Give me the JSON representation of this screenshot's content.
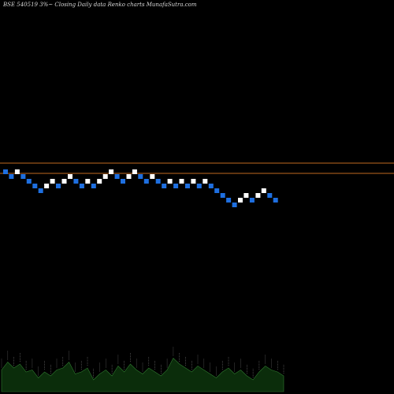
{
  "chart_data": {
    "type": "renko",
    "title": "BSE 540519 3%~  Closing Daily data  Renko  charts MunafaSutra.com",
    "colors": {
      "background": "#000000",
      "up_brick": "#ffffff",
      "down_brick": "#1e6fe0",
      "reference_line": "#c06a1f",
      "volume_fill": "#0b2d0b",
      "volume_stroke": "#2f7a2f"
    },
    "reference_levels": [
      1,
      2
    ],
    "bricks": [
      {
        "level": 1,
        "dir": "down"
      },
      {
        "level": 0,
        "dir": "down"
      },
      {
        "level": 1,
        "dir": "up"
      },
      {
        "level": 0,
        "dir": "down"
      },
      {
        "level": -1,
        "dir": "down"
      },
      {
        "level": -2,
        "dir": "down"
      },
      {
        "level": -3,
        "dir": "down"
      },
      {
        "level": -2,
        "dir": "up"
      },
      {
        "level": -1,
        "dir": "up"
      },
      {
        "level": -2,
        "dir": "down"
      },
      {
        "level": -1,
        "dir": "up"
      },
      {
        "level": 0,
        "dir": "up"
      },
      {
        "level": -1,
        "dir": "down"
      },
      {
        "level": -2,
        "dir": "down"
      },
      {
        "level": -1,
        "dir": "up"
      },
      {
        "level": -2,
        "dir": "down"
      },
      {
        "level": -1,
        "dir": "up"
      },
      {
        "level": 0,
        "dir": "up"
      },
      {
        "level": 1,
        "dir": "up"
      },
      {
        "level": 0,
        "dir": "down"
      },
      {
        "level": -1,
        "dir": "down"
      },
      {
        "level": 0,
        "dir": "up"
      },
      {
        "level": 1,
        "dir": "up"
      },
      {
        "level": 0,
        "dir": "down"
      },
      {
        "level": -1,
        "dir": "down"
      },
      {
        "level": 0,
        "dir": "up"
      },
      {
        "level": -1,
        "dir": "down"
      },
      {
        "level": -2,
        "dir": "down"
      },
      {
        "level": -1,
        "dir": "up"
      },
      {
        "level": -2,
        "dir": "down"
      },
      {
        "level": -1,
        "dir": "up"
      },
      {
        "level": -2,
        "dir": "down"
      },
      {
        "level": -1,
        "dir": "up"
      },
      {
        "level": -2,
        "dir": "down"
      },
      {
        "level": -1,
        "dir": "up"
      },
      {
        "level": -2,
        "dir": "down"
      },
      {
        "level": -3,
        "dir": "down"
      },
      {
        "level": -4,
        "dir": "down"
      },
      {
        "level": -5,
        "dir": "down"
      },
      {
        "level": -6,
        "dir": "down"
      },
      {
        "level": -5,
        "dir": "up"
      },
      {
        "level": -4,
        "dir": "up"
      },
      {
        "level": -5,
        "dir": "down"
      },
      {
        "level": -4,
        "dir": "up"
      },
      {
        "level": -3,
        "dir": "up"
      },
      {
        "level": -4,
        "dir": "down"
      },
      {
        "level": -5,
        "dir": "down"
      }
    ],
    "volume_relative": [
      0.55,
      0.75,
      0.6,
      0.7,
      0.5,
      0.55,
      0.35,
      0.5,
      0.4,
      0.55,
      0.6,
      0.75,
      0.45,
      0.5,
      0.6,
      0.3,
      0.45,
      0.55,
      0.4,
      0.65,
      0.5,
      0.7,
      0.55,
      0.45,
      0.6,
      0.5,
      0.4,
      0.55,
      0.85,
      0.7,
      0.6,
      0.5,
      0.65,
      0.55,
      0.45,
      0.35,
      0.5,
      0.6,
      0.45,
      0.55,
      0.4,
      0.3,
      0.5,
      0.65,
      0.55,
      0.5,
      0.4
    ]
  }
}
